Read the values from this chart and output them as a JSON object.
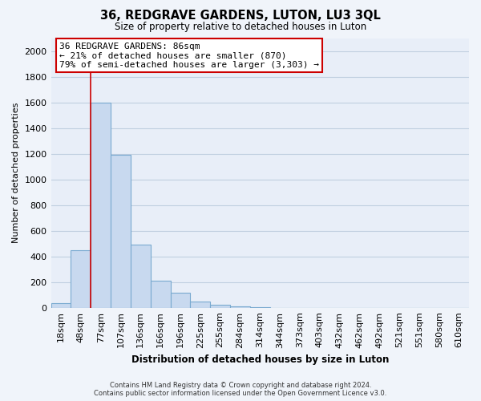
{
  "title": "36, REDGRAVE GARDENS, LUTON, LU3 3QL",
  "subtitle": "Size of property relative to detached houses in Luton",
  "xlabel": "Distribution of detached houses by size in Luton",
  "ylabel": "Number of detached properties",
  "bar_labels": [
    "18sqm",
    "48sqm",
    "77sqm",
    "107sqm",
    "136sqm",
    "166sqm",
    "196sqm",
    "225sqm",
    "255sqm",
    "284sqm",
    "314sqm",
    "344sqm",
    "373sqm",
    "403sqm",
    "432sqm",
    "462sqm",
    "492sqm",
    "521sqm",
    "551sqm",
    "580sqm",
    "610sqm"
  ],
  "bar_values": [
    35,
    450,
    1600,
    1190,
    490,
    210,
    115,
    45,
    20,
    8,
    2,
    0,
    0,
    0,
    0,
    0,
    0,
    0,
    0,
    0,
    0
  ],
  "bar_color": "#c8d9ef",
  "bar_edge_color": "#7aaad0",
  "property_line_index": 2,
  "property_line_color": "#cc0000",
  "annotation_text": "36 REDGRAVE GARDENS: 86sqm\n← 21% of detached houses are smaller (870)\n79% of semi-detached houses are larger (3,303) →",
  "annotation_box_color": "#ffffff",
  "annotation_box_edge": "#cc0000",
  "ylim": [
    0,
    2100
  ],
  "yticks": [
    0,
    200,
    400,
    600,
    800,
    1000,
    1200,
    1400,
    1600,
    1800,
    2000
  ],
  "footer_line1": "Contains HM Land Registry data © Crown copyright and database right 2024.",
  "footer_line2": "Contains public sector information licensed under the Open Government Licence v3.0.",
  "bg_color": "#f0f4fa",
  "plot_bg_color": "#e8eef8",
  "grid_color": "#c0cfe0"
}
